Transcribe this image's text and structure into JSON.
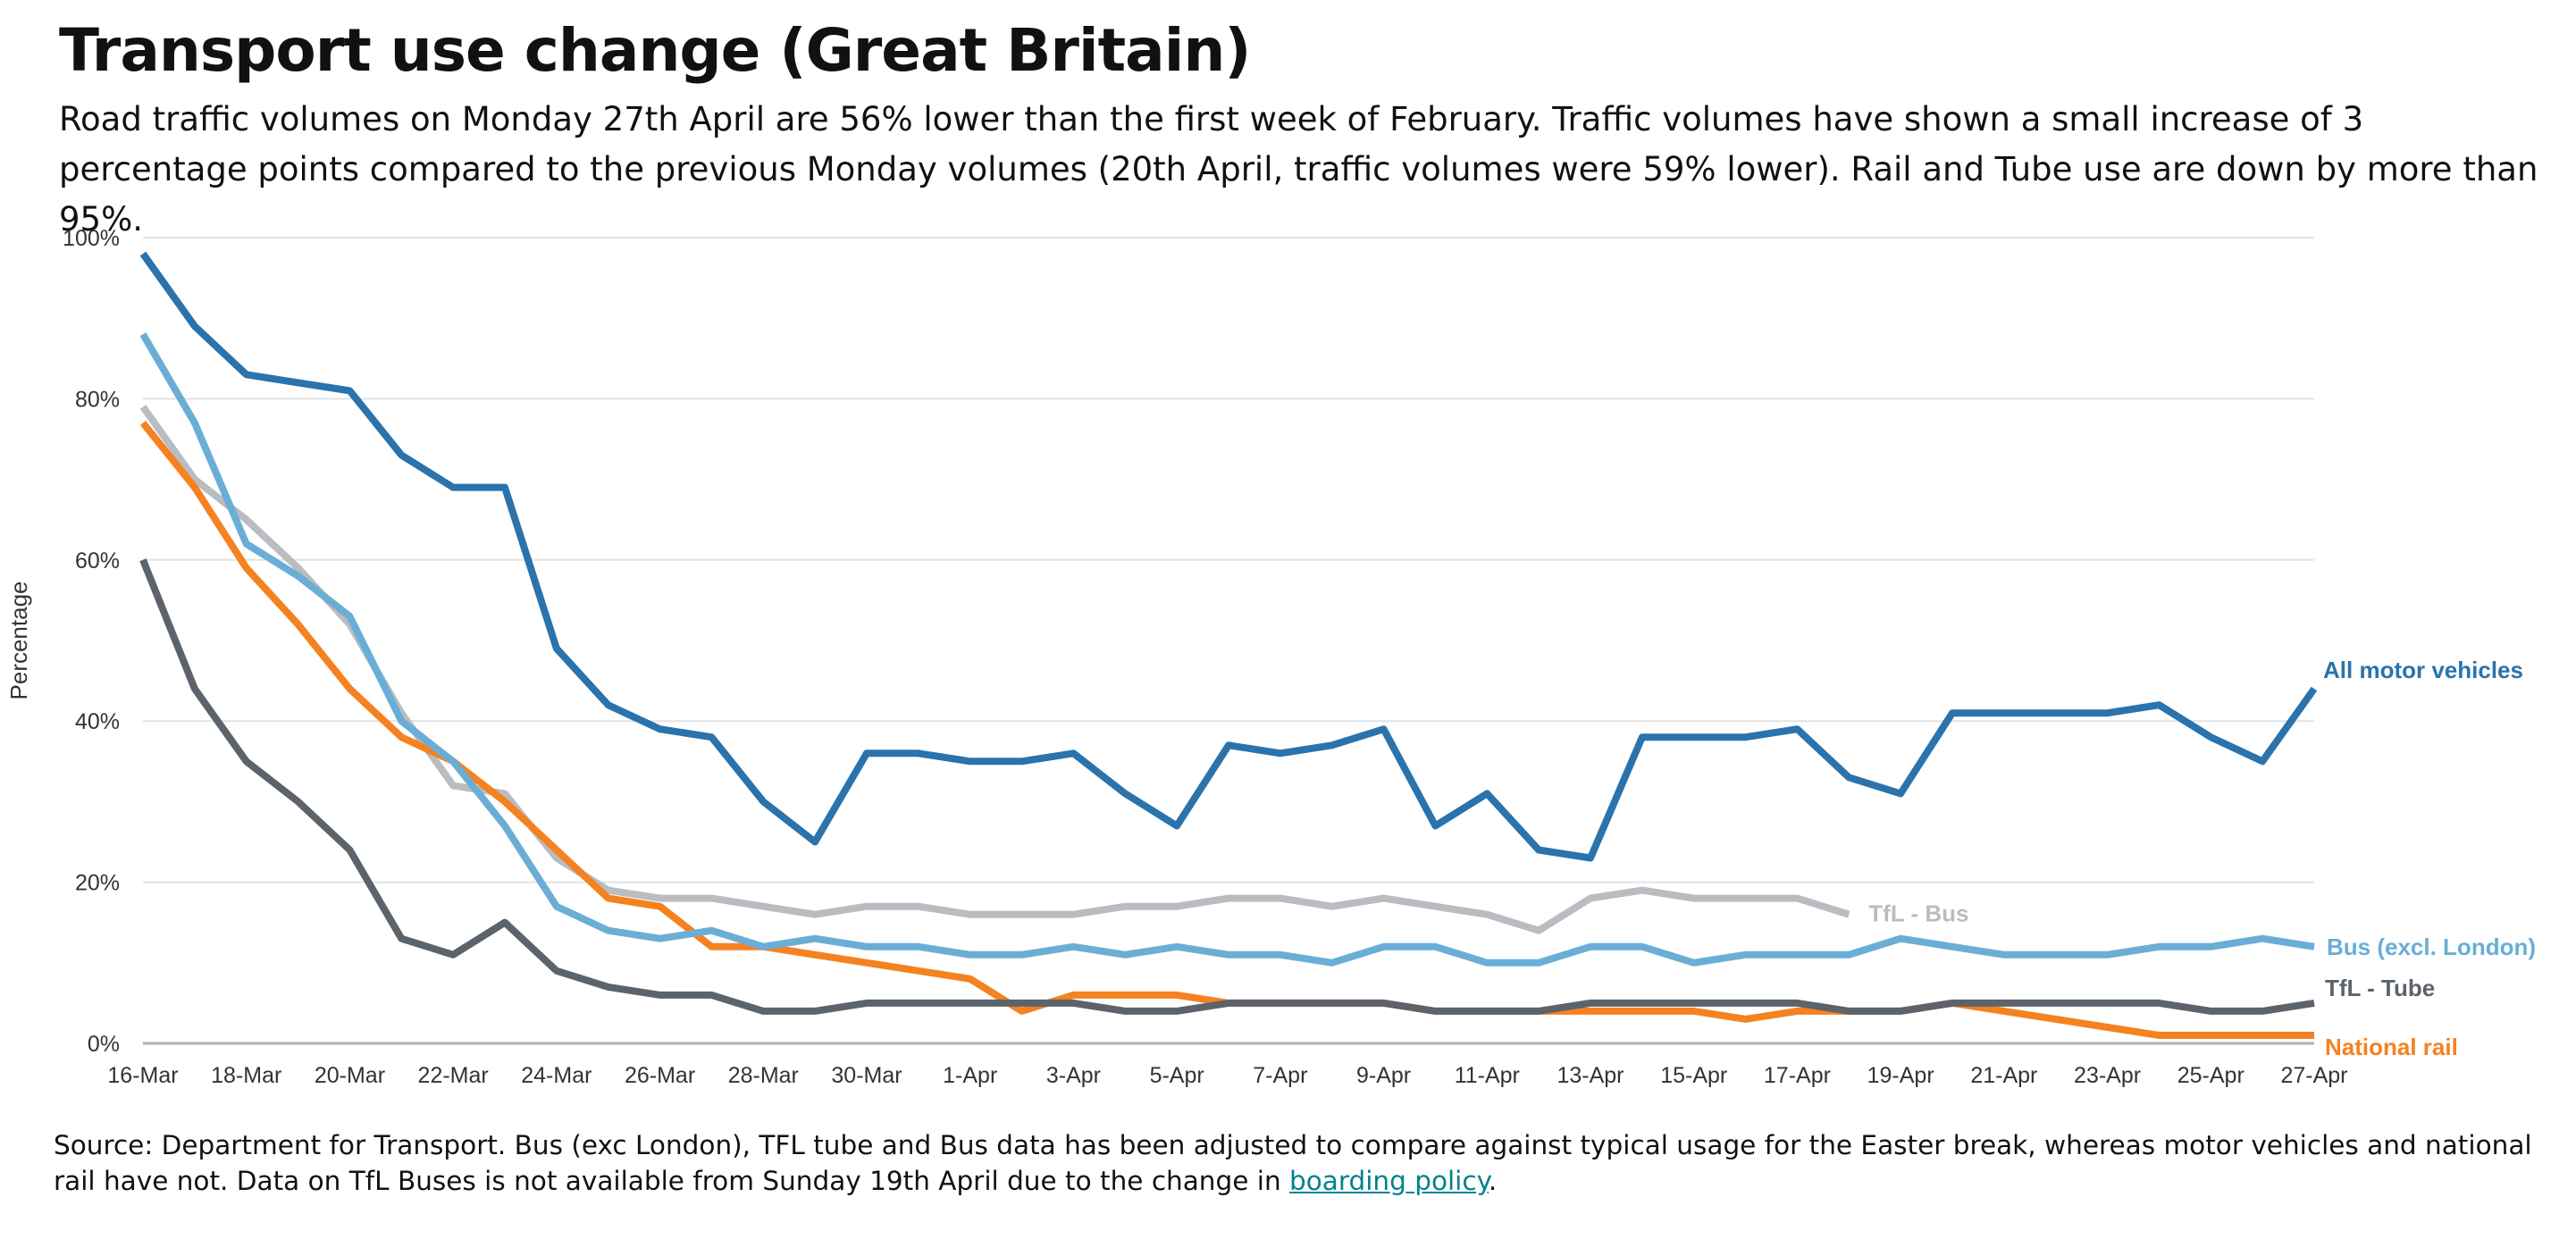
{
  "title": "Transport use change (Great Britain)",
  "subtitle": "Road traffic volumes on Monday 27th April are 56% lower than the first week of February. Traffic volumes have shown a small increase of 3 percentage points compared to the previous Monday volumes (20th April, traffic volumes were 59% lower). Rail and Tube use are down by more than 95%.",
  "source": {
    "text": "Source: Department for Transport. Bus (exc London), TFL tube and Bus data has been adjusted to compare against typical usage for the Easter break, whereas motor vehicles and national rail have not. Data on TfL Buses is not available from Sunday 19th April due to the change in ",
    "link_text": "boarding policy",
    "end": "."
  },
  "chart_data": {
    "type": "line",
    "title": "",
    "xlabel": "",
    "ylabel": "Percentage",
    "ylim": [
      0,
      100
    ],
    "yticks": [
      0,
      20,
      40,
      60,
      80,
      100
    ],
    "ytick_labels": [
      "0%",
      "20%",
      "40%",
      "60%",
      "80%",
      "100%"
    ],
    "grid": true,
    "legend": "direct labels at line ends",
    "x": [
      "16-Mar",
      "17-Mar",
      "18-Mar",
      "19-Mar",
      "20-Mar",
      "21-Mar",
      "22-Mar",
      "23-Mar",
      "24-Mar",
      "25-Mar",
      "26-Mar",
      "27-Mar",
      "28-Mar",
      "29-Mar",
      "30-Mar",
      "31-Mar",
      "1-Apr",
      "2-Apr",
      "3-Apr",
      "4-Apr",
      "5-Apr",
      "6-Apr",
      "7-Apr",
      "8-Apr",
      "9-Apr",
      "10-Apr",
      "11-Apr",
      "12-Apr",
      "13-Apr",
      "14-Apr",
      "15-Apr",
      "16-Apr",
      "17-Apr",
      "18-Apr",
      "19-Apr",
      "20-Apr",
      "21-Apr",
      "22-Apr",
      "23-Apr",
      "24-Apr",
      "25-Apr",
      "26-Apr",
      "27-Apr"
    ],
    "xtick_labels": [
      "16-Mar",
      "18-Mar",
      "20-Mar",
      "22-Mar",
      "24-Mar",
      "26-Mar",
      "28-Mar",
      "30-Mar",
      "1-Apr",
      "3-Apr",
      "5-Apr",
      "7-Apr",
      "9-Apr",
      "11-Apr",
      "13-Apr",
      "15-Apr",
      "17-Apr",
      "19-Apr",
      "21-Apr",
      "23-Apr",
      "25-Apr",
      "27-Apr"
    ],
    "series": [
      {
        "name": "TfL - Bus",
        "color": "#b9bcc1",
        "values": [
          79,
          70,
          65,
          59,
          52,
          41,
          32,
          31,
          23,
          19,
          18,
          18,
          17,
          16,
          17,
          17,
          16,
          16,
          16,
          17,
          17,
          18,
          18,
          17,
          18,
          17,
          16,
          14,
          18,
          19,
          18,
          18,
          18,
          16,
          null,
          null,
          null,
          null,
          null,
          null,
          null,
          null,
          null
        ]
      },
      {
        "name": "National rail",
        "color": "#f58220",
        "values": [
          77,
          69,
          59,
          52,
          44,
          38,
          35,
          30,
          24,
          18,
          17,
          12,
          12,
          11,
          10,
          9,
          8,
          4,
          6,
          6,
          6,
          5,
          5,
          5,
          5,
          4,
          4,
          4,
          4,
          4,
          4,
          3,
          4,
          4,
          4,
          5,
          4,
          3,
          2,
          1,
          1,
          1,
          1
        ]
      },
      {
        "name": "Bus (excl. London)",
        "color": "#6aaed6",
        "values": [
          88,
          77,
          62,
          58,
          53,
          40,
          35,
          27,
          17,
          14,
          13,
          14,
          12,
          13,
          12,
          12,
          11,
          11,
          12,
          11,
          12,
          11,
          11,
          10,
          12,
          12,
          10,
          10,
          12,
          12,
          10,
          11,
          11,
          11,
          13,
          12,
          11,
          11,
          11,
          12,
          12,
          13,
          12
        ]
      },
      {
        "name": "TfL - Tube",
        "color": "#5c636a",
        "values": [
          60,
          44,
          35,
          30,
          24,
          13,
          11,
          15,
          9,
          7,
          6,
          6,
          4,
          4,
          5,
          5,
          5,
          5,
          5,
          4,
          4,
          5,
          5,
          5,
          5,
          4,
          4,
          4,
          5,
          5,
          5,
          5,
          5,
          4,
          4,
          5,
          5,
          5,
          5,
          5,
          4,
          4,
          5
        ]
      },
      {
        "name": "All motor vehicles",
        "color": "#2a73ac",
        "values": [
          98,
          89,
          83,
          82,
          81,
          73,
          69,
          69,
          49,
          42,
          39,
          38,
          30,
          25,
          36,
          36,
          35,
          35,
          36,
          31,
          27,
          37,
          36,
          37,
          39,
          27,
          31,
          24,
          23,
          38,
          38,
          38,
          39,
          33,
          31,
          41,
          41,
          41,
          41,
          42,
          38,
          35,
          44
        ]
      }
    ]
  }
}
